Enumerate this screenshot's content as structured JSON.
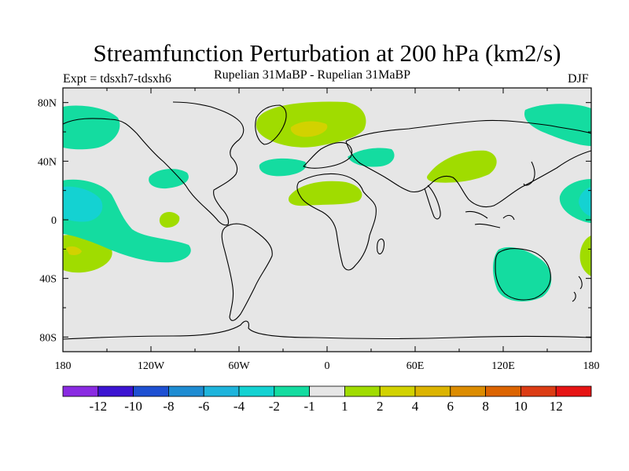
{
  "header": {
    "title": "Streamfunction Perturbation at 200 hPa (km2/s)",
    "experiment": "Expt = tdsxh7-tdsxh6",
    "period": "Rupelian  31MaBP - Rupelian  31MaBP",
    "season": "DJF"
  },
  "map": {
    "lon_range": [
      -180,
      180
    ],
    "lat_range": [
      -90,
      90
    ],
    "background_color": "#e6e6e6",
    "lat_ticks": [
      {
        "lat": 80,
        "label": "80N"
      },
      {
        "lat": 40,
        "label": "40N"
      },
      {
        "lat": 0,
        "label": "0"
      },
      {
        "lat": -40,
        "label": "40S"
      },
      {
        "lat": -80,
        "label": "80S"
      }
    ],
    "lon_ticks": [
      {
        "lon": -180,
        "label": "180"
      },
      {
        "lon": -120,
        "label": "120W"
      },
      {
        "lon": -60,
        "label": "60W"
      },
      {
        "lon": 0,
        "label": "0"
      },
      {
        "lon": 60,
        "label": "60E"
      },
      {
        "lon": 120,
        "label": "120E"
      },
      {
        "lon": 180,
        "label": "180"
      }
    ]
  },
  "colorbar": {
    "colors": [
      "#8a2be2",
      "#3c14d2",
      "#1e50d2",
      "#1e8cd2",
      "#1eb4dc",
      "#14d2d2",
      "#14dca0",
      "#e6e6e6",
      "#a0dc00",
      "#d2d200",
      "#dcb400",
      "#dc8c00",
      "#dc6400",
      "#dc3c14",
      "#e61414"
    ],
    "labels": [
      "-12",
      "-10",
      "-8",
      "-6",
      "-4",
      "-2",
      "-1",
      "1",
      "2",
      "4",
      "6",
      "8",
      "10",
      "12"
    ]
  }
}
